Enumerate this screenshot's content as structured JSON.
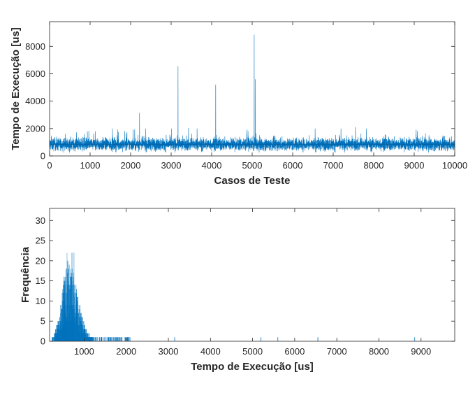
{
  "chart_data": [
    {
      "type": "line",
      "xlabel": "Casos de Teste",
      "ylabel": "Tempo de Execução [us]",
      "xlim": [
        0,
        10000
      ],
      "ylim": [
        0,
        9800
      ],
      "xticks": [
        0,
        1000,
        2000,
        3000,
        4000,
        5000,
        6000,
        7000,
        8000,
        9000,
        10000
      ],
      "yticks": [
        0,
        2000,
        4000,
        6000,
        8000
      ],
      "grid": false,
      "box": true,
      "color": "#0072bd",
      "series_stats": {
        "n_points": 10000,
        "baseline_mean": 850,
        "baseline_spread": [
          250,
          1700
        ]
      },
      "spikes": [
        {
          "x": 2220,
          "y": 3150
        },
        {
          "x": 3170,
          "y": 6550
        },
        {
          "x": 4100,
          "y": 5200
        },
        {
          "x": 5050,
          "y": 8850
        },
        {
          "x": 5080,
          "y": 5600
        },
        {
          "x": 1550,
          "y": 2000
        },
        {
          "x": 3430,
          "y": 2050
        },
        {
          "x": 7550,
          "y": 2100
        }
      ]
    },
    {
      "type": "bar",
      "xlabel": "Tempo de Execução [us]",
      "ylabel": "Frequência",
      "xlim": [
        180,
        9800
      ],
      "ylim": [
        0,
        33
      ],
      "xticks": [
        1000,
        2000,
        3000,
        4000,
        5000,
        6000,
        7000,
        8000,
        9000
      ],
      "yticks": [
        0,
        5,
        10,
        15,
        20,
        25,
        30
      ],
      "grid": false,
      "box": true,
      "color": "#0072bd",
      "bin_width_us": 1,
      "distribution_peak_us": 700,
      "max_frequency": 25,
      "outliers": [
        {
          "x": 3150,
          "y": 1
        },
        {
          "x": 5200,
          "y": 1
        },
        {
          "x": 5600,
          "y": 1
        },
        {
          "x": 6550,
          "y": 1
        },
        {
          "x": 8850,
          "y": 1
        }
      ]
    }
  ]
}
